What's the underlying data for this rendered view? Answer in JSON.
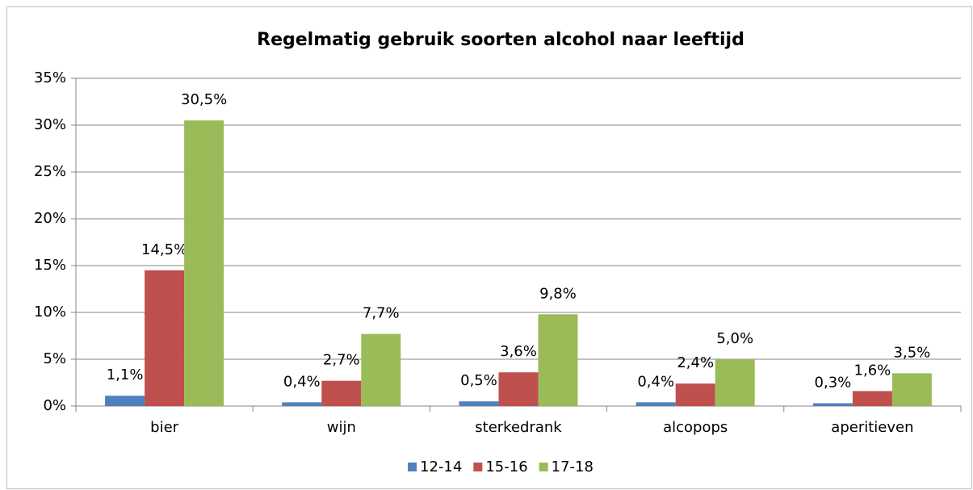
{
  "chart_data": {
    "type": "bar",
    "title": "Regelmatig gebruik soorten alcohol naar leeftijd",
    "categories": [
      "bier",
      "wijn",
      "sterkedrank",
      "alcopops",
      "aperitieven"
    ],
    "series": [
      {
        "name": "12-14",
        "color": "#4f81bd",
        "values": [
          1.1,
          0.4,
          0.5,
          0.4,
          0.3
        ],
        "value_labels": [
          "1,1%",
          "0,4%",
          "0,5%",
          "0,4%",
          "0,3%"
        ]
      },
      {
        "name": "15-16",
        "color": "#c0504d",
        "values": [
          14.5,
          2.7,
          3.6,
          2.4,
          1.6
        ],
        "value_labels": [
          "14,5%",
          "2,7%",
          "3,6%",
          "2,4%",
          "1,6%"
        ]
      },
      {
        "name": "17-18",
        "color": "#9bbb59",
        "values": [
          30.5,
          7.7,
          9.8,
          5.0,
          3.5
        ],
        "value_labels": [
          "30,5%",
          "7,7%",
          "9,8%",
          "5,0%",
          "3,5%"
        ]
      }
    ],
    "ylim": [
      0,
      35
    ],
    "yticks": [
      {
        "value": 0,
        "label": "0%"
      },
      {
        "value": 5,
        "label": "5%"
      },
      {
        "value": 10,
        "label": "10%"
      },
      {
        "value": 15,
        "label": "15%"
      },
      {
        "value": 20,
        "label": "20%"
      },
      {
        "value": 25,
        "label": "25%"
      },
      {
        "value": 30,
        "label": "30%"
      },
      {
        "value": 35,
        "label": "35%"
      }
    ],
    "grid": true,
    "legend": "bottom"
  }
}
